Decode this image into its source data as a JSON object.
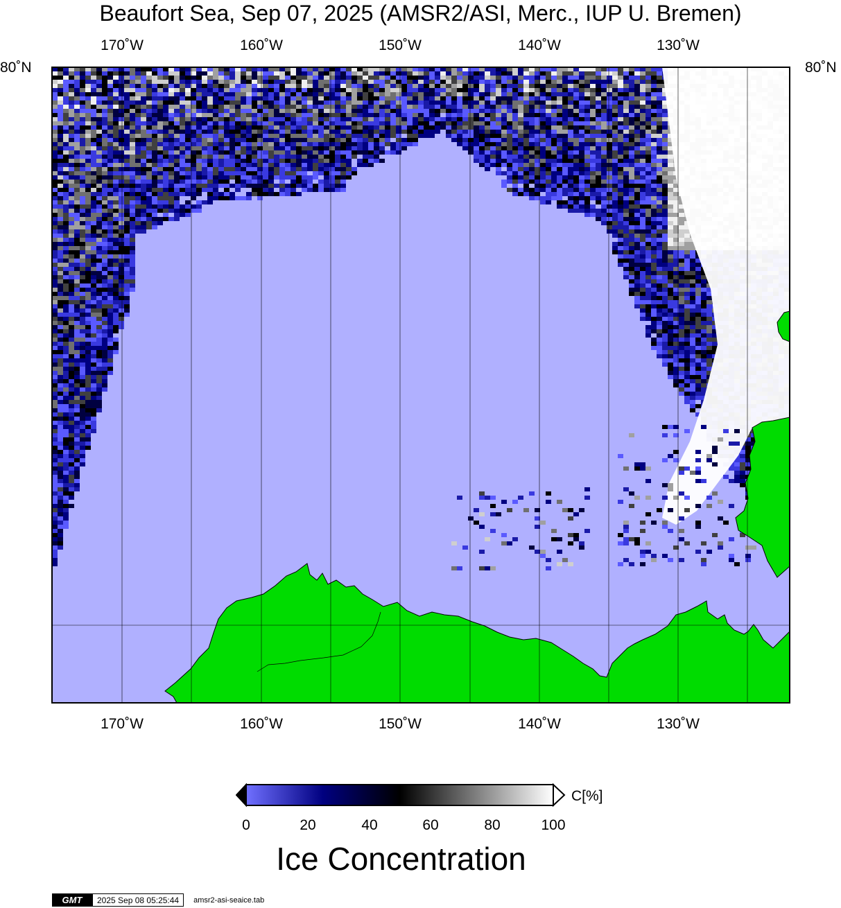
{
  "title": "Beaufort Sea, Sep 07, 2025 (AMSR2/ASI, Merc., IUP U. Bremen)",
  "longitude_labels": [
    "170˚W",
    "160˚W",
    "150˚W",
    "140˚W",
    "130˚W"
  ],
  "latitude_label": "80˚N",
  "colorbar": {
    "title": "Ice Concentration",
    "unit": "C[%]",
    "ticks": [
      "0",
      "20",
      "40",
      "60",
      "80",
      "100"
    ],
    "colors": [
      "#7070ff",
      "#000080",
      "#000000",
      "#ffffff"
    ]
  },
  "map_colors": {
    "open_water": "#b0b0ff",
    "land": "#00dc00",
    "coast": "#000000"
  },
  "footer": {
    "logo": "GMT",
    "timestamp": "2025 Sep 08 05:25:44",
    "file": "amsr2-asi-seaice.tab"
  }
}
